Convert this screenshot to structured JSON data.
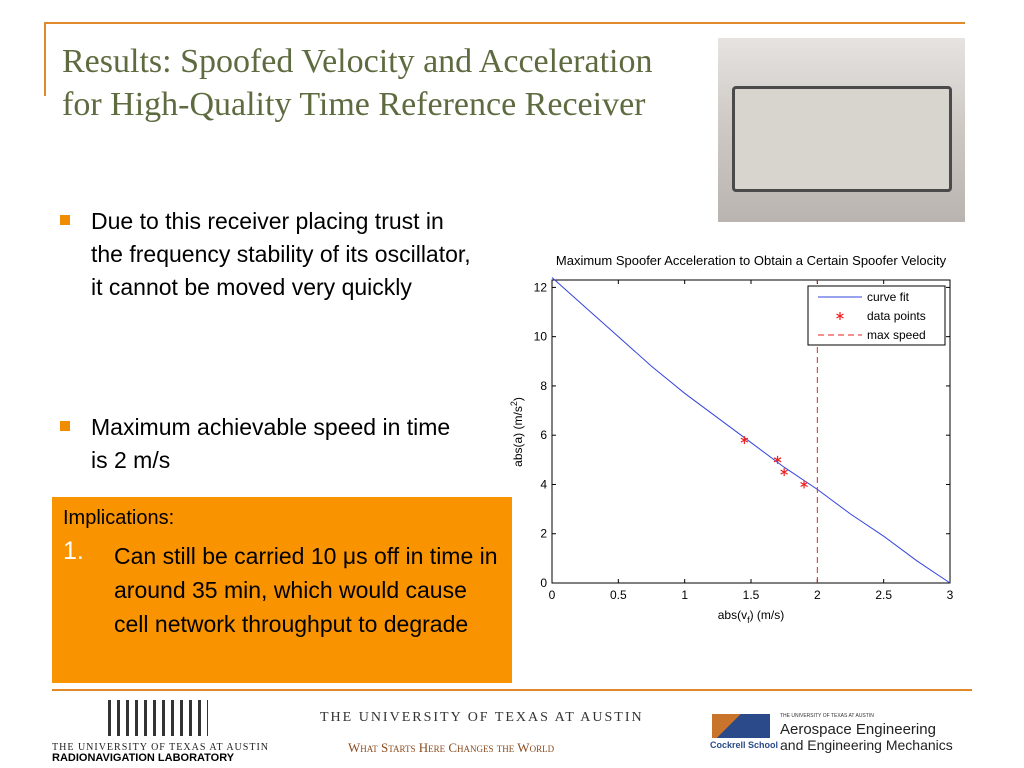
{
  "header": {
    "title": "Results: Spoofed Velocity and Acceleration for High-Quality Time Reference Receiver"
  },
  "bullets": [
    "Due to this receiver placing trust in the frequency stability of its oscillator, it cannot be moved very quickly",
    "Maximum achievable speed in time is 2 m/s"
  ],
  "callout": {
    "heading": "Implications:",
    "items": [
      {
        "number": "1.",
        "text": "Can still be carried 10 μs off in time in around 35 min, which would cause cell network throughput to degrade"
      }
    ]
  },
  "footer": {
    "left": {
      "university": "THE UNIVERSITY OF TEXAS AT AUSTIN",
      "lab": "RADIONAVIGATION LABORATORY"
    },
    "center": {
      "university": "THE UNIVERSITY OF TEXAS AT AUSTIN",
      "motto": "What Starts Here Changes the World"
    },
    "right": {
      "school": "Cockrell School",
      "university": "THE UNIVERSITY OF TEXAS AT AUSTIN",
      "line1": "Aerospace Engineering",
      "line2": "and Engineering Mechanics"
    }
  },
  "chart_data": {
    "type": "line",
    "title": "Maximum Spoofer Acceleration to Obtain a Certain Spoofer Velocity",
    "xlabel": [
      "abs(v",
      "f",
      ") (m/s)"
    ],
    "ylabel": [
      "abs(a) (m/s",
      "2",
      ")"
    ],
    "xlim": [
      0,
      3
    ],
    "ylim": [
      0,
      12.3
    ],
    "xticks": [
      0,
      0.5,
      1,
      1.5,
      2,
      2.5,
      3
    ],
    "yticks": [
      0,
      2,
      4,
      6,
      8,
      10,
      12
    ],
    "legend": "upper right",
    "series": [
      {
        "name": "curve fit",
        "color": "#3344dd",
        "x": [
          0,
          0.25,
          0.5,
          0.75,
          1,
          1.25,
          1.5,
          1.75,
          2,
          2.25,
          2.5,
          2.75,
          3
        ],
        "values": [
          12.4,
          11.2,
          10.0,
          8.8,
          7.7,
          6.7,
          5.7,
          4.7,
          3.8,
          2.8,
          1.9,
          0.9,
          0
        ]
      },
      {
        "name": "data points",
        "color": "#ee2222",
        "marker": "*",
        "x": [
          1.45,
          1.7,
          1.75,
          1.9
        ],
        "values": [
          5.8,
          5.0,
          4.5,
          4.0
        ]
      },
      {
        "name": "max speed",
        "color": "#ee2222",
        "dash": true,
        "x": [
          2,
          2
        ],
        "values": [
          0,
          12.3
        ]
      }
    ]
  }
}
